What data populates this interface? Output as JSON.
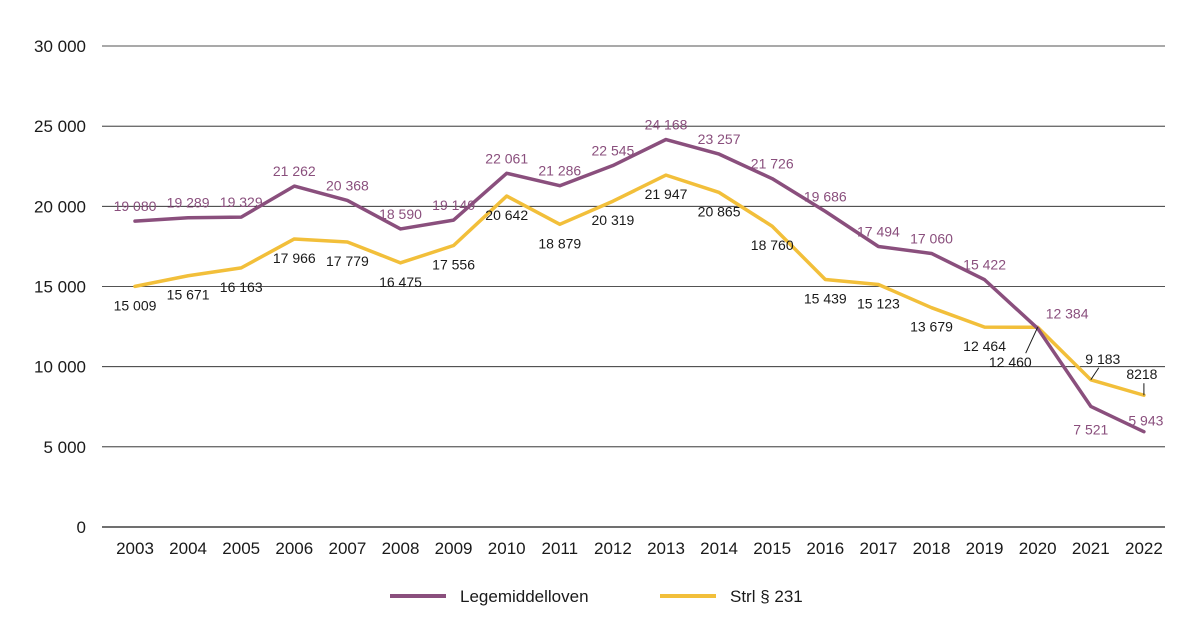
{
  "chart_data": {
    "type": "line",
    "title": "",
    "xlabel": "",
    "ylabel": "",
    "ylim": [
      0,
      30000
    ],
    "yticks": [
      0,
      5000,
      10000,
      15000,
      20000,
      25000,
      30000
    ],
    "ytick_labels": [
      "0",
      "5 000",
      "10 000",
      "15 000",
      "20 000",
      "25 000",
      "30 000"
    ],
    "grid": true,
    "legend_position": "bottom",
    "categories": [
      "2003",
      "2004",
      "2005",
      "2006",
      "2007",
      "2008",
      "2009",
      "2010",
      "2011",
      "2012",
      "2013",
      "2014",
      "2015",
      "2016",
      "2017",
      "2018",
      "2019",
      "2020",
      "2021",
      "2022"
    ],
    "series": [
      {
        "name": "Legemiddelloven",
        "color": "#8a4f7d",
        "values": [
          19080,
          19289,
          19329,
          21262,
          20368,
          18590,
          19140,
          22061,
          21286,
          22545,
          24168,
          23257,
          21726,
          19686,
          17494,
          17060,
          15422,
          12384,
          7521,
          5943
        ],
        "labels": [
          "19 080",
          "19 289",
          "19 329",
          "21 262",
          "20 368",
          "18 590",
          "19 140",
          "22 061",
          "21 286",
          "22 545",
          "24 168",
          "23 257",
          "21 726",
          "19 686",
          "17 494",
          "17 060",
          "15 422",
          "12 384",
          "7 521",
          "5 943"
        ],
        "label_side": [
          "above",
          "above",
          "above",
          "above",
          "above",
          "above",
          "above",
          "above",
          "above",
          "above",
          "above",
          "above",
          "above",
          "above",
          "above",
          "above",
          "above",
          "above",
          "below",
          "above"
        ]
      },
      {
        "name": "Strl § 231",
        "color": "#f2bf3a",
        "values": [
          15009,
          15671,
          16163,
          17966,
          17779,
          16475,
          17556,
          20642,
          18879,
          20319,
          21947,
          20865,
          18760,
          15439,
          15123,
          13679,
          12464,
          12460,
          9183,
          8218
        ],
        "labels": [
          "15 009",
          "15 671",
          "16 163",
          "17 966",
          "17 779",
          "16 475",
          "17 556",
          "20 642",
          "18 879",
          "20 319",
          "21 947",
          "20 865",
          "18 760",
          "15 439",
          "15 123",
          "13 679",
          "12 464",
          "12 460",
          "9 183",
          "8218"
        ],
        "label_side": [
          "below",
          "below",
          "below",
          "below",
          "below",
          "below",
          "below",
          "below",
          "below",
          "below",
          "below",
          "below",
          "below",
          "below",
          "below",
          "below",
          "below",
          "below",
          "above",
          "above"
        ]
      }
    ]
  }
}
